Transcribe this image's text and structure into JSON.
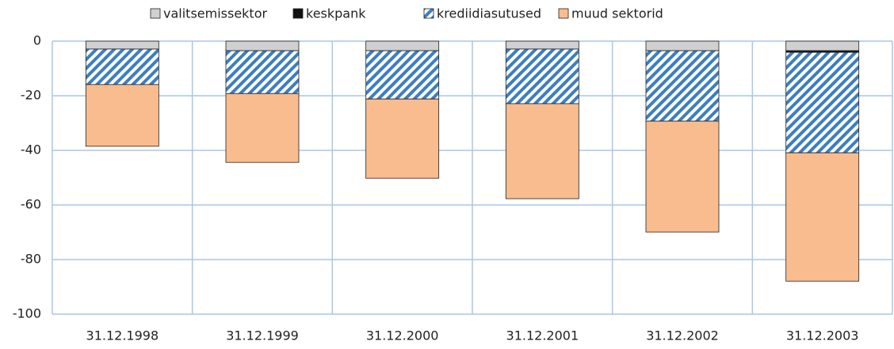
{
  "chart_data": {
    "type": "stacked-bar",
    "categories": [
      "31.12.1998",
      "31.12.1999",
      "31.12.2000",
      "31.12.2001",
      "31.12.2002",
      "31.12.2003"
    ],
    "series": [
      {
        "name": "valitsemissektor",
        "color": "#d0d0d0",
        "values": [
          -2.9,
          -3.5,
          -3.5,
          -2.9,
          -3.5,
          -3.5
        ]
      },
      {
        "name": "keskpank",
        "color": "#111111",
        "values": [
          0,
          0,
          0,
          0,
          0,
          -0.6
        ]
      },
      {
        "name": "krediidiasutused",
        "color": "#3d7ec0",
        "pattern": "hatch",
        "values": [
          -13.0,
          -15.7,
          -17.7,
          -20.0,
          -25.8,
          -36.8
        ]
      },
      {
        "name": "muud sektorid",
        "color": "#f9bc8f",
        "values": [
          -22.6,
          -25.2,
          -29.0,
          -34.8,
          -40.6,
          -47.0
        ]
      }
    ],
    "ylim": [
      -100,
      0
    ],
    "yticks": [
      0,
      -20,
      -40,
      -60,
      -80,
      -100
    ],
    "grid": true,
    "legend": "top"
  }
}
